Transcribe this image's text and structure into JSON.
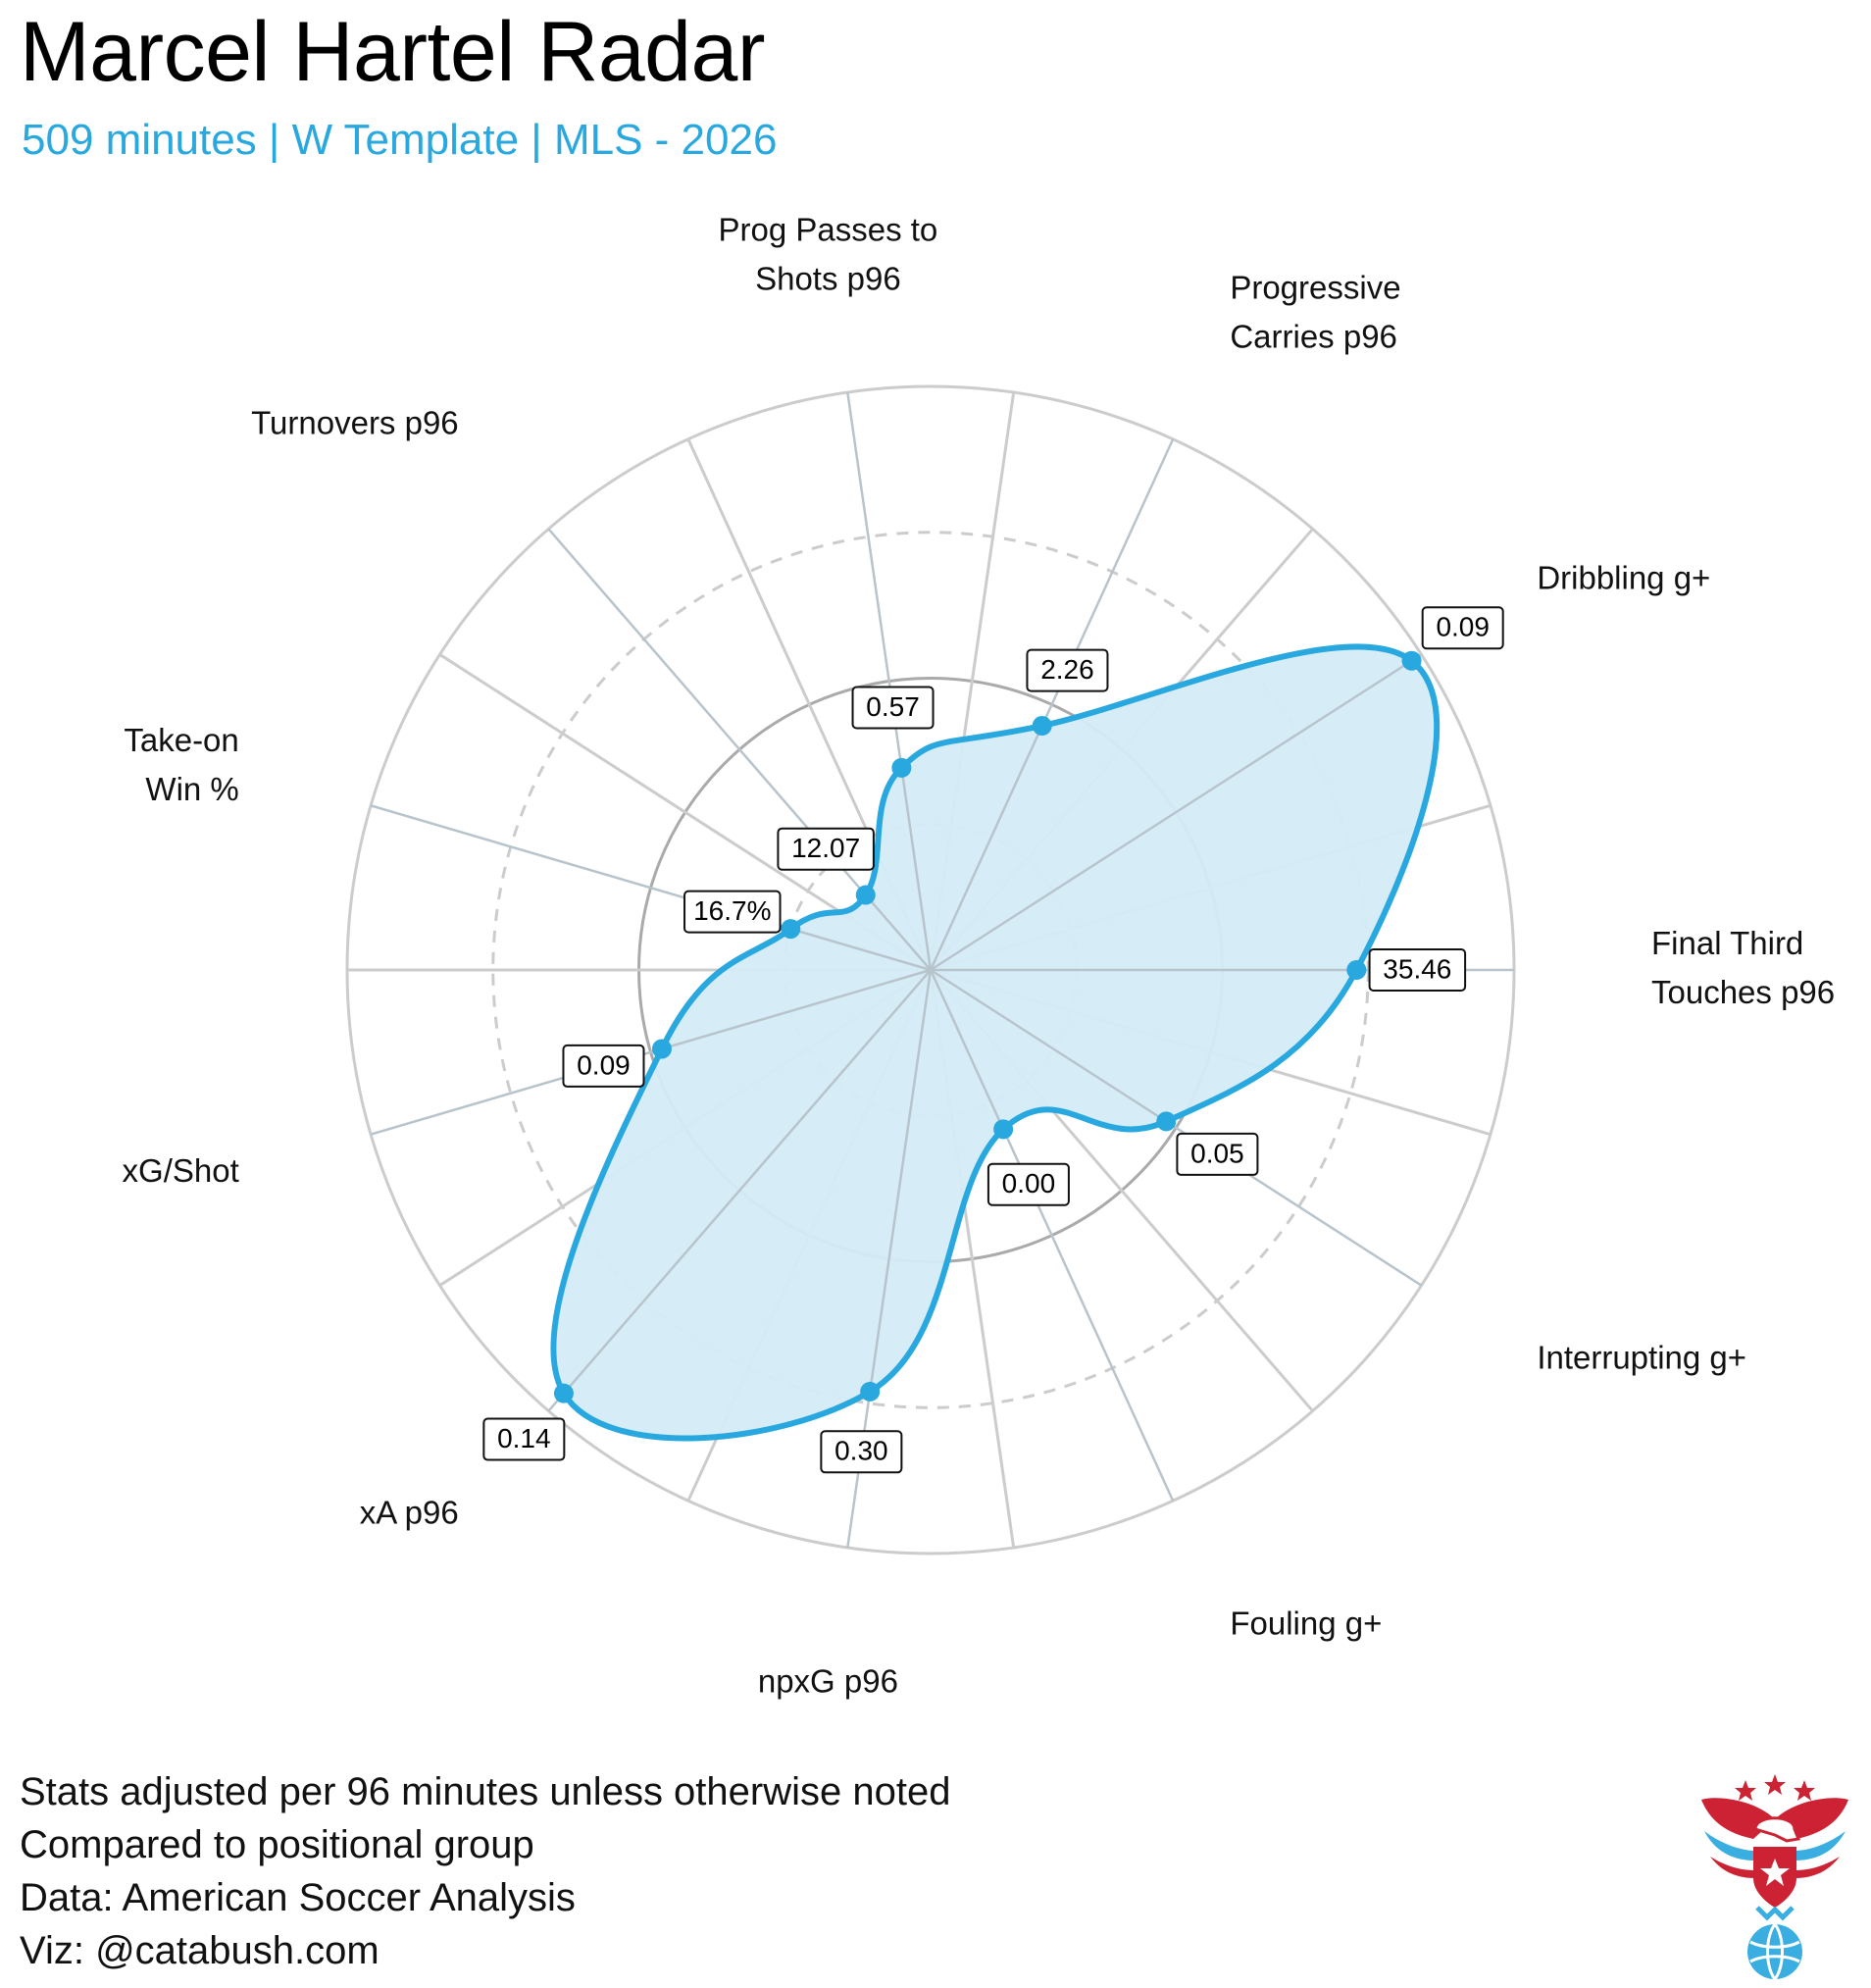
{
  "header": {
    "title": "Marcel Hartel Radar",
    "subtitle": "509 minutes | W Template | MLS - 2026"
  },
  "colors": {
    "accent": "#29a8df",
    "fill": "#d4ecf8",
    "grid": "#cccccc",
    "ring_mid": "#aaaaaa",
    "logo_red": "#cc2233",
    "logo_blue": "#3aaee0"
  },
  "chart_data": {
    "type": "radar",
    "title": "Marcel Hartel Radar",
    "subtitle": "509 minutes | W Template | MLS - 2026",
    "axes": [
      {
        "label": [
          "Final Third",
          "Touches p96"
        ],
        "value_label": "35.46",
        "percentile": 0.73
      },
      {
        "label": [
          "Dribbling g+"
        ],
        "value_label": "0.09",
        "percentile": 0.98
      },
      {
        "label": [
          "Progressive",
          "Carries p96"
        ],
        "value_label": "2.26",
        "percentile": 0.46
      },
      {
        "label": [
          "Prog Passes to",
          "Shots p96"
        ],
        "value_label": "0.57",
        "percentile": 0.35
      },
      {
        "label": [
          "Turnovers p96"
        ],
        "value_label": "12.07",
        "percentile": 0.17
      },
      {
        "label": [
          "Take-on",
          "Win %"
        ],
        "value_label": "16.7%",
        "percentile": 0.25
      },
      {
        "label": [
          "xG/Shot"
        ],
        "value_label": "0.09",
        "percentile": 0.48
      },
      {
        "label": [
          "xA p96"
        ],
        "value_label": "0.14",
        "percentile": 0.96
      },
      {
        "label": [
          "npxG p96"
        ],
        "value_label": "0.30",
        "percentile": 0.73
      },
      {
        "label": [
          "Fouling g+"
        ],
        "value_label": "0.00",
        "percentile": 0.3
      },
      {
        "label": [
          "Interrupting g+"
        ],
        "value_label": "0.05",
        "percentile": 0.48
      }
    ],
    "rings": [
      0.25,
      0.5,
      0.75,
      1.0
    ],
    "rlim": [
      0,
      1
    ],
    "grid": true
  },
  "footer": {
    "notes": [
      "Stats adjusted per 96 minutes unless otherwise noted",
      "Compared to positional group",
      "Data: American Soccer Analysis",
      "Viz: @catabush.com"
    ]
  },
  "logo": {
    "icon": "eagle-shield-soccer-ball-icon"
  }
}
